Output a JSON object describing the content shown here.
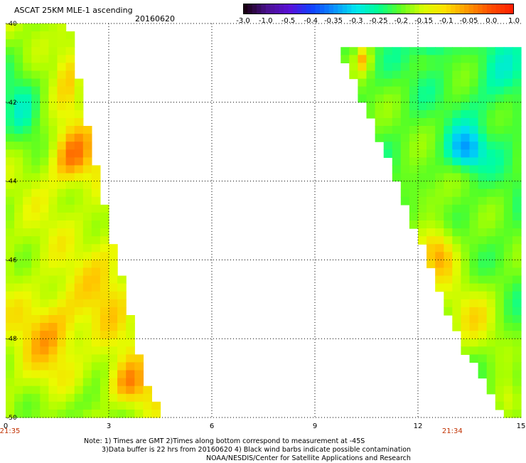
{
  "header": {
    "title": "ASCAT 25KM MLE-1 ascending",
    "date": "20160620"
  },
  "colorbar": {
    "tick_labels": [
      "-3.0",
      "-1.0",
      "-0.5",
      "-0.4",
      "-0.35",
      "-0.3",
      "-0.25",
      "-0.2",
      "-0.15",
      "-0.1",
      "-0.05",
      "0.0",
      "1.0"
    ],
    "colors": [
      "#1a0014",
      "#4a1090",
      "#5a10d8",
      "#1040ff",
      "#0a90ff",
      "#00e8f0",
      "#00ff90",
      "#60ff20",
      "#d8ff00",
      "#ffe000",
      "#ff9800",
      "#ff5000",
      "#ff2000"
    ]
  },
  "chart_data": {
    "type": "heatmap",
    "title": "ASCAT 25KM MLE-1 ascending",
    "subtitle": "20160620",
    "x_ticks": [
      "0",
      "3",
      "6",
      "9",
      "12",
      "15"
    ],
    "y_ticks": [
      "-40",
      "-42",
      "-44",
      "-46",
      "-48",
      "-50"
    ],
    "xlim": [
      0,
      15
    ],
    "ylim": [
      -50,
      -40
    ],
    "grid": true,
    "time_labels": [
      {
        "text": "21:35",
        "x": 0
      },
      {
        "text": "21:34",
        "x": 13
      }
    ],
    "swaths": [
      {
        "name": "west",
        "x_west": 0,
        "east_edge": [
          [
            -40,
            1.7
          ],
          [
            -42,
            2.1
          ],
          [
            -44,
            2.6
          ],
          [
            -45.4,
            2.95
          ],
          [
            -47,
            3.4
          ],
          [
            -49,
            3.9
          ],
          [
            -50,
            4.5
          ]
        ],
        "mle_pattern": "mostly -0.15 to 0.0 (yellow/orange), with peaks near 0.0 at lon 1.8 lat -43.3, lon 1.4 lat -47.8, lon 3.6 lat -49.2; -0.25 to -0.2 along western edge near -41 to -43"
      },
      {
        "name": "east",
        "x_east": 15,
        "west_edge": [
          [
            -40.6,
            9.8
          ],
          [
            -42,
            10.5
          ],
          [
            -44,
            11.5
          ],
          [
            -46,
            12.4
          ],
          [
            -48,
            13.3
          ],
          [
            -50,
            14.6
          ]
        ],
        "mle_pattern": "mostly -0.25 to -0.15 (green/cyan), with low near -0.35 at lon 13.4 lat -43.2 and lon 12.4 lat -40.4; higher -0.05 to 0.0 near lon 12.6 lat -45.8"
      }
    ]
  },
  "notes": {
    "line1": "Note: 1) Times are GMT 2)Times along bottom correspond to measurement at -45S",
    "line2": "3)Data buffer is 22 hrs from 20160620 4) Black wind barbs indicate possible contamination",
    "line3": "NOAA/NESDIS/Center for Satellite Applications and Research"
  }
}
